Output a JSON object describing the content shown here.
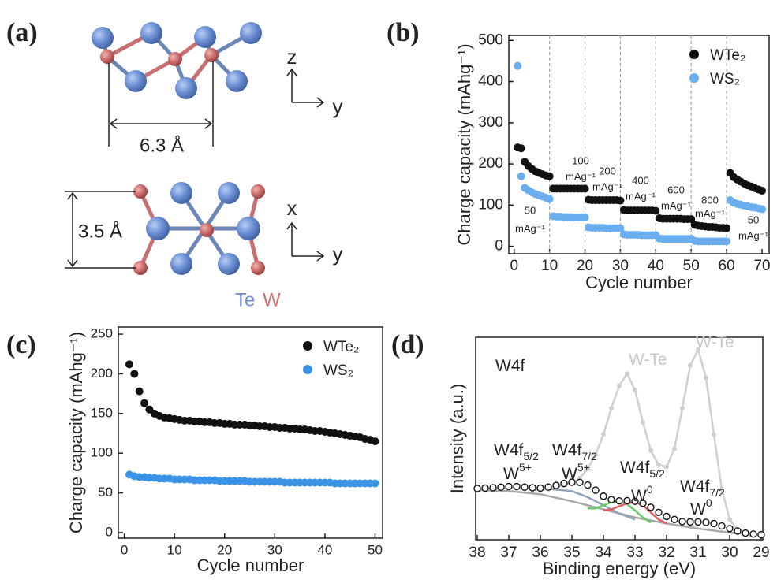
{
  "panel_labels": [
    "(a)",
    "(b)",
    "(c)",
    "(d)"
  ],
  "diagram": {
    "top_dimension": "6.3 Å",
    "bottom_dimension": "3.5 Å",
    "top_axes": [
      "z",
      "y"
    ],
    "bottom_axes": [
      "x",
      "y"
    ],
    "legend": [
      "Te",
      "W"
    ]
  },
  "chart_data": [
    {
      "type": "scatter",
      "xlabel": "Cycle number",
      "ylabel": "Charge capacity (mAhg⁻¹)",
      "x": [
        1,
        2,
        3,
        4,
        5,
        6,
        7,
        8,
        9,
        10,
        11,
        12,
        13,
        14,
        15,
        16,
        17,
        18,
        19,
        20,
        21,
        22,
        23,
        24,
        25,
        26,
        27,
        28,
        29,
        30,
        31,
        32,
        33,
        34,
        35,
        36,
        37,
        38,
        39,
        40,
        41,
        42,
        43,
        44,
        45,
        46,
        47,
        48,
        49,
        50,
        51,
        52,
        53,
        54,
        55,
        56,
        57,
        58,
        59,
        60,
        61,
        62,
        63,
        64,
        65,
        66,
        67,
        68,
        69,
        70
      ],
      "series": [
        {
          "name": "WTe₂",
          "color": "#111111",
          "values": [
            240,
            238,
            205,
            195,
            188,
            182,
            178,
            175,
            172,
            170,
            140,
            140,
            140,
            140,
            140,
            140,
            140,
            140,
            140,
            140,
            113,
            112,
            112,
            112,
            112,
            112,
            112,
            112,
            112,
            111,
            88,
            87,
            87,
            87,
            87,
            87,
            87,
            87,
            87,
            86,
            68,
            67,
            67,
            67,
            67,
            67,
            67,
            66,
            66,
            66,
            52,
            50,
            49,
            48,
            47,
            47,
            46,
            45,
            45,
            44,
            178,
            168,
            162,
            157,
            152,
            148,
            145,
            141,
            138,
            135
          ]
        },
        {
          "name": "WS₂",
          "color": "#6aaef0",
          "values": [
            438,
            170,
            142,
            136,
            131,
            127,
            124,
            121,
            118,
            115,
            73,
            72,
            72,
            71,
            71,
            71,
            70,
            70,
            70,
            70,
            46,
            45,
            45,
            45,
            45,
            44,
            44,
            44,
            44,
            44,
            29,
            28,
            28,
            28,
            28,
            27,
            27,
            27,
            27,
            27,
            19,
            18,
            18,
            18,
            18,
            18,
            18,
            18,
            18,
            18,
            13,
            12,
            12,
            12,
            12,
            12,
            12,
            12,
            12,
            12,
            112,
            106,
            103,
            101,
            99,
            97,
            95,
            94,
            92,
            90
          ]
        }
      ],
      "xlim": [
        -1.5,
        72
      ],
      "ylim": [
        -18,
        512
      ],
      "xticks": [
        0,
        10,
        20,
        30,
        40,
        50,
        60,
        70
      ],
      "yticks": [
        0,
        100,
        200,
        300,
        400,
        500
      ],
      "legend": "upper right",
      "dividers": [
        10,
        20,
        30,
        40,
        50,
        60
      ],
      "rate_labels": [
        [
          "50",
          "mAg⁻¹"
        ],
        [
          "100",
          "mAg⁻¹"
        ],
        [
          "200",
          "mAg⁻¹"
        ],
        [
          "400",
          "mAg⁻¹"
        ],
        [
          "600",
          "mAg⁻¹"
        ],
        [
          "800",
          "mAg⁻¹"
        ],
        [
          "50",
          "mAg⁻¹"
        ]
      ]
    },
    {
      "type": "scatter",
      "xlabel": "Cycle number",
      "ylabel": "Charge capacity (mAhg⁻¹)",
      "x": [
        1,
        2,
        3,
        4,
        5,
        6,
        7,
        8,
        9,
        10,
        11,
        12,
        13,
        14,
        15,
        16,
        17,
        18,
        19,
        20,
        21,
        22,
        23,
        24,
        25,
        26,
        27,
        28,
        29,
        30,
        31,
        32,
        33,
        34,
        35,
        36,
        37,
        38,
        39,
        40,
        41,
        42,
        43,
        44,
        45,
        46,
        47,
        48,
        49,
        50
      ],
      "series": [
        {
          "name": "WTe₂",
          "color": "#111111",
          "values": [
            212,
            200,
            178,
            163,
            155,
            150,
            147,
            145,
            144,
            143,
            142,
            141,
            141,
            140,
            140,
            139,
            139,
            138,
            138,
            137,
            137,
            136,
            136,
            136,
            135,
            135,
            134,
            134,
            133,
            133,
            132,
            132,
            131,
            131,
            130,
            130,
            129,
            128,
            128,
            127,
            126,
            125,
            124,
            123,
            122,
            121,
            120,
            118,
            117,
            115
          ]
        },
        {
          "name": "WS₂",
          "color": "#3a93e6",
          "values": [
            73,
            71,
            70,
            70,
            69,
            69,
            68,
            68,
            68,
            67,
            67,
            67,
            67,
            66,
            66,
            66,
            66,
            66,
            65,
            65,
            65,
            65,
            65,
            65,
            64,
            64,
            64,
            64,
            64,
            64,
            64,
            63,
            63,
            63,
            63,
            63,
            63,
            63,
            63,
            63,
            63,
            62,
            62,
            62,
            62,
            62,
            62,
            62,
            62,
            62
          ]
        }
      ],
      "xlim": [
        -1.2,
        51.5
      ],
      "ylim": [
        -7,
        259
      ],
      "xticks": [
        0,
        10,
        20,
        30,
        40,
        50
      ],
      "yticks": [
        0,
        50,
        100,
        150,
        200,
        250
      ],
      "legend": "upper right"
    },
    {
      "type": "line",
      "xlabel": "Binding energy (eV)",
      "ylabel": "Intensity (a.u.)",
      "series": [
        {
          "color": "#a8a8a8",
          "style": "line",
          "x": [
            38,
            37,
            36,
            35,
            34,
            33,
            32,
            31,
            30,
            29
          ],
          "values": [
            24.5,
            24,
            22.5,
            19,
            15,
            11,
            8,
            5.5,
            3.5,
            2.3
          ]
        },
        {
          "color": "#8fa3b8",
          "style": "line",
          "x": [
            38,
            37,
            36,
            35,
            34.5,
            34,
            33.5,
            33
          ],
          "values": [
            25,
            25.5,
            25.5,
            24,
            21,
            17,
            13,
            10
          ]
        },
        {
          "color": "#66cc66",
          "style": "line",
          "x": [
            34.5,
            34.25,
            34,
            33.75,
            33.5,
            33.25,
            33,
            32.75,
            32.5
          ],
          "values": [
            15.5,
            15.5,
            17,
            18.5,
            19,
            17.5,
            14.5,
            11,
            8.5
          ]
        },
        {
          "color": "#e06060",
          "style": "line",
          "x": [
            34,
            33.75,
            33.5,
            33.25,
            33,
            32.75,
            32.5,
            32.25,
            32
          ],
          "values": [
            14.5,
            15,
            16.5,
            18,
            18.5,
            17,
            13.5,
            10,
            8
          ]
        },
        {
          "color": "#cfcfcf",
          "style": "line-dots",
          "x": [
            38,
            37.75,
            37.5,
            37.25,
            37,
            36.75,
            36.5,
            36.25,
            36,
            35.75,
            35.5,
            35.25,
            35,
            34.75,
            34.5,
            34.25,
            34,
            33.75,
            33.5,
            33.25,
            33,
            32.75,
            32.5,
            32.25,
            32,
            31.75,
            31.5,
            31.25,
            31,
            30.75,
            30.5,
            30.25,
            30,
            29.75,
            29.5,
            29.25,
            29
          ],
          "values": [
            25,
            25,
            25.2,
            25.4,
            25.6,
            25.4,
            25,
            24.6,
            24.5,
            25,
            26,
            26.8,
            28,
            30.5,
            35,
            42,
            52,
            65,
            76,
            82,
            74,
            58,
            44,
            37,
            36,
            45,
            65,
            86,
            94,
            80,
            52,
            25,
            10,
            5,
            3.5,
            3,
            2.6
          ]
        },
        {
          "color": "#111111",
          "style": "open-markers",
          "x": [
            38,
            37.75,
            37.5,
            37.25,
            37,
            36.75,
            36.5,
            36.25,
            36,
            35.75,
            35.5,
            35.25,
            35,
            34.75,
            34.5,
            34.25,
            34,
            33.75,
            33.5,
            33.25,
            33,
            32.75,
            32.5,
            32.25,
            32,
            31.75,
            31.5,
            31.25,
            31,
            30.75,
            30.5,
            30.25,
            30,
            29.75,
            29.5,
            29.25,
            29
          ],
          "values": [
            25.3,
            25.5,
            25.7,
            26,
            26.3,
            26.3,
            26,
            25.7,
            25.5,
            26,
            26.8,
            27.8,
            28.4,
            28.3,
            27,
            24.5,
            21.5,
            19.8,
            19.2,
            19.3,
            19,
            18,
            16,
            13.5,
            11.5,
            10,
            9,
            8.8,
            8.8,
            8.6,
            8,
            6.8,
            5.5,
            4.3,
            3.3,
            2.8,
            2.5
          ]
        }
      ],
      "xlim": [
        38.05,
        28.95
      ],
      "ylim": [
        0,
        100
      ],
      "xticks": [
        38,
        37,
        36,
        35,
        34,
        33,
        32,
        31,
        30,
        29
      ],
      "annotations": [
        {
          "text": "W4f"
        },
        {
          "text": "W-Te",
          "color": "#c8c8c8"
        },
        {
          "text": "W-Te",
          "color": "#c8c8c8"
        },
        {
          "text": "W4f",
          "sub": "5/2"
        },
        {
          "text": "W",
          "sup": "5+"
        },
        {
          "text": "W4f",
          "sub": "7/2"
        },
        {
          "text": "W",
          "sup": "5+"
        },
        {
          "text": "W4f",
          "sub": "5/2"
        },
        {
          "text": "W",
          "sup": "0"
        },
        {
          "text": "W4f",
          "sub": "7/2"
        },
        {
          "text": "W",
          "sup": "0"
        }
      ]
    }
  ]
}
